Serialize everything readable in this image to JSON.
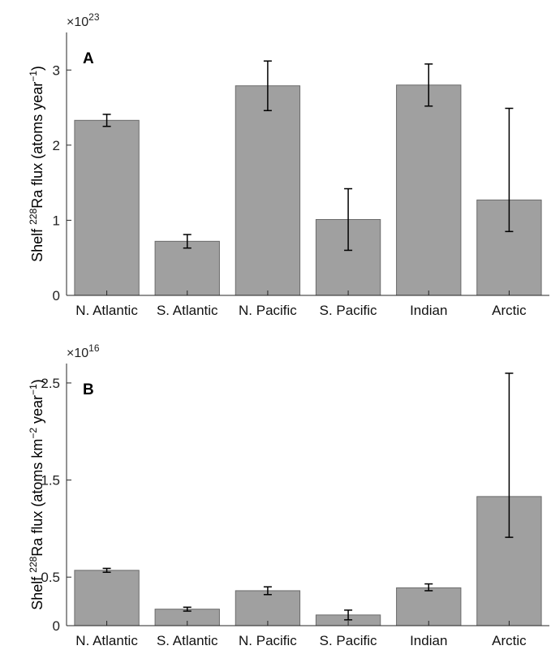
{
  "chart_data": [
    {
      "type": "bar",
      "panel_label": "A",
      "categories": [
        "N. Atlantic",
        "S. Atlantic",
        "N. Pacific",
        "S. Pacific",
        "Indian",
        "Arctic"
      ],
      "values": [
        2.33,
        0.72,
        2.79,
        1.01,
        2.8,
        1.27
      ],
      "error_low": [
        2.25,
        0.63,
        2.46,
        0.6,
        2.52,
        0.85
      ],
      "error_high": [
        2.41,
        0.81,
        3.12,
        1.42,
        3.08,
        2.49
      ],
      "ylabel_pre": "Shelf ",
      "ylabel_sup1": "228",
      "ylabel_mid": "Ra flux (atoms year",
      "ylabel_sup2": "−1",
      "ylabel_post": ")",
      "exponent_base": "×10",
      "exponent_power": "23",
      "ylim": [
        0,
        3.5
      ],
      "yticks": [
        0,
        1,
        2,
        3
      ],
      "ytick_labels": [
        "0",
        "1",
        "2",
        "3"
      ],
      "bar_color": "#a0a0a0",
      "grid": false
    },
    {
      "type": "bar",
      "panel_label": "B",
      "categories": [
        "N. Atlantic",
        "S. Atlantic",
        "N. Pacific",
        "S. Pacific",
        "Indian",
        "Arctic"
      ],
      "values": [
        0.57,
        0.17,
        0.36,
        0.11,
        0.39,
        1.33
      ],
      "error_low": [
        0.55,
        0.15,
        0.32,
        0.06,
        0.36,
        0.91
      ],
      "error_high": [
        0.59,
        0.19,
        0.4,
        0.16,
        0.43,
        2.6
      ],
      "ylabel_pre": "Shelf ",
      "ylabel_sup1": "228",
      "ylabel_mid": "Ra flux (atoms km",
      "ylabel_sup2": "−2",
      "ylabel_mid2": " year",
      "ylabel_sup3": "−1",
      "ylabel_post": ")",
      "exponent_base": "×10",
      "exponent_power": "16",
      "ylim": [
        0,
        2.7
      ],
      "yticks": [
        0,
        0.5,
        1.5,
        2.5
      ],
      "ytick_labels": [
        "0",
        "0.5",
        "1.5",
        "2.5"
      ],
      "bar_color": "#a0a0a0",
      "grid": false
    }
  ]
}
